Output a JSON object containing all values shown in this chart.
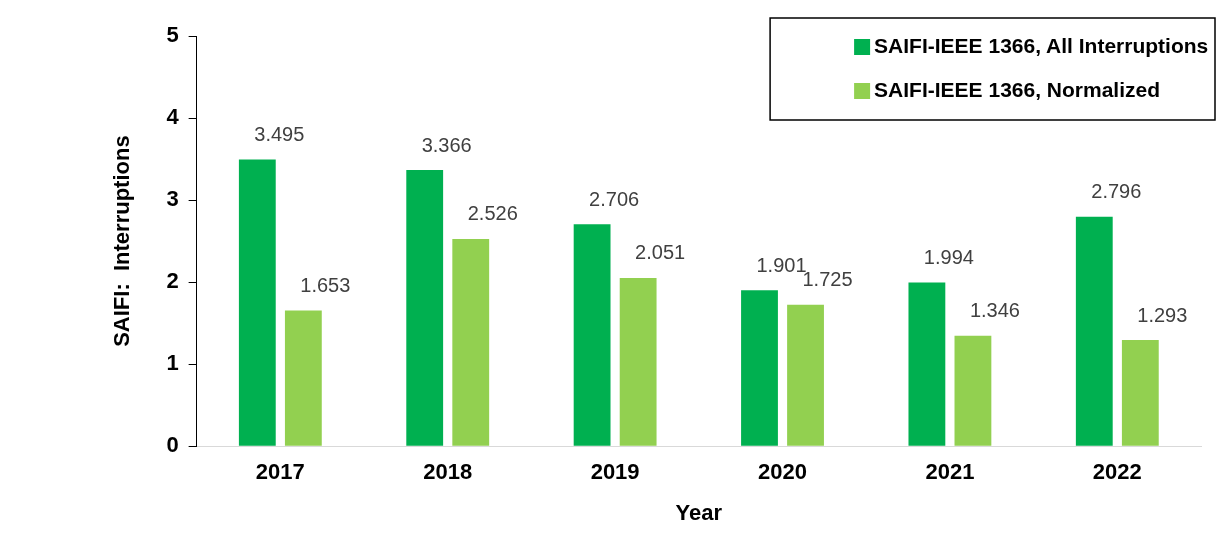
{
  "chart_data": {
    "type": "bar",
    "xlabel": "Year",
    "ylabel": "SAIFI:  Interruptions",
    "categories": [
      "2017",
      "2018",
      "2019",
      "2020",
      "2021",
      "2022"
    ],
    "series": [
      {
        "name": "SAIFI-IEEE 1366, All Interruptions",
        "color": "#00b050",
        "values": [
          3.495,
          3.366,
          2.706,
          1.901,
          1.994,
          2.796
        ]
      },
      {
        "name": "SAIFI-IEEE 1366, Normalized",
        "color": "#92d050",
        "values": [
          1.653,
          2.526,
          2.051,
          1.725,
          1.346,
          1.293
        ]
      }
    ],
    "ylim": [
      0,
      5
    ],
    "yticks": [
      0,
      1,
      2,
      3,
      4,
      5
    ],
    "grid": false,
    "legend": "top right",
    "data_labels": true
  }
}
